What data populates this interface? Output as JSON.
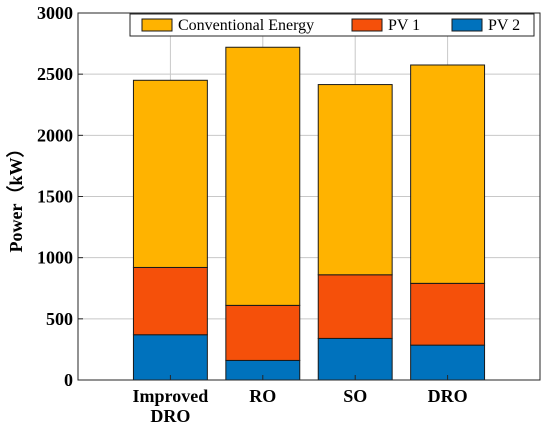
{
  "chart_data": {
    "type": "bar",
    "stacked": true,
    "categories": [
      [
        "Improved",
        "DRO"
      ],
      [
        "RO"
      ],
      [
        "SO"
      ],
      [
        "DRO"
      ]
    ],
    "series": [
      {
        "name": "PV 2",
        "color": "#0072BD",
        "values": [
          370,
          160,
          340,
          285
        ]
      },
      {
        "name": "PV 1",
        "color": "#F5500A",
        "values": [
          550,
          450,
          520,
          505
        ]
      },
      {
        "name": "Conventional Energy",
        "color": "#FFB300",
        "values": [
          1530,
          2110,
          1555,
          1785
        ]
      }
    ],
    "legend_order": [
      "Conventional Energy",
      "PV 1",
      "PV 2"
    ],
    "ylabel": "Power（kW）",
    "ylim": [
      0,
      3000
    ],
    "yticks": [
      0,
      500,
      1000,
      1500,
      2000,
      2500,
      3000
    ],
    "grid": true,
    "legend_position": "top"
  }
}
